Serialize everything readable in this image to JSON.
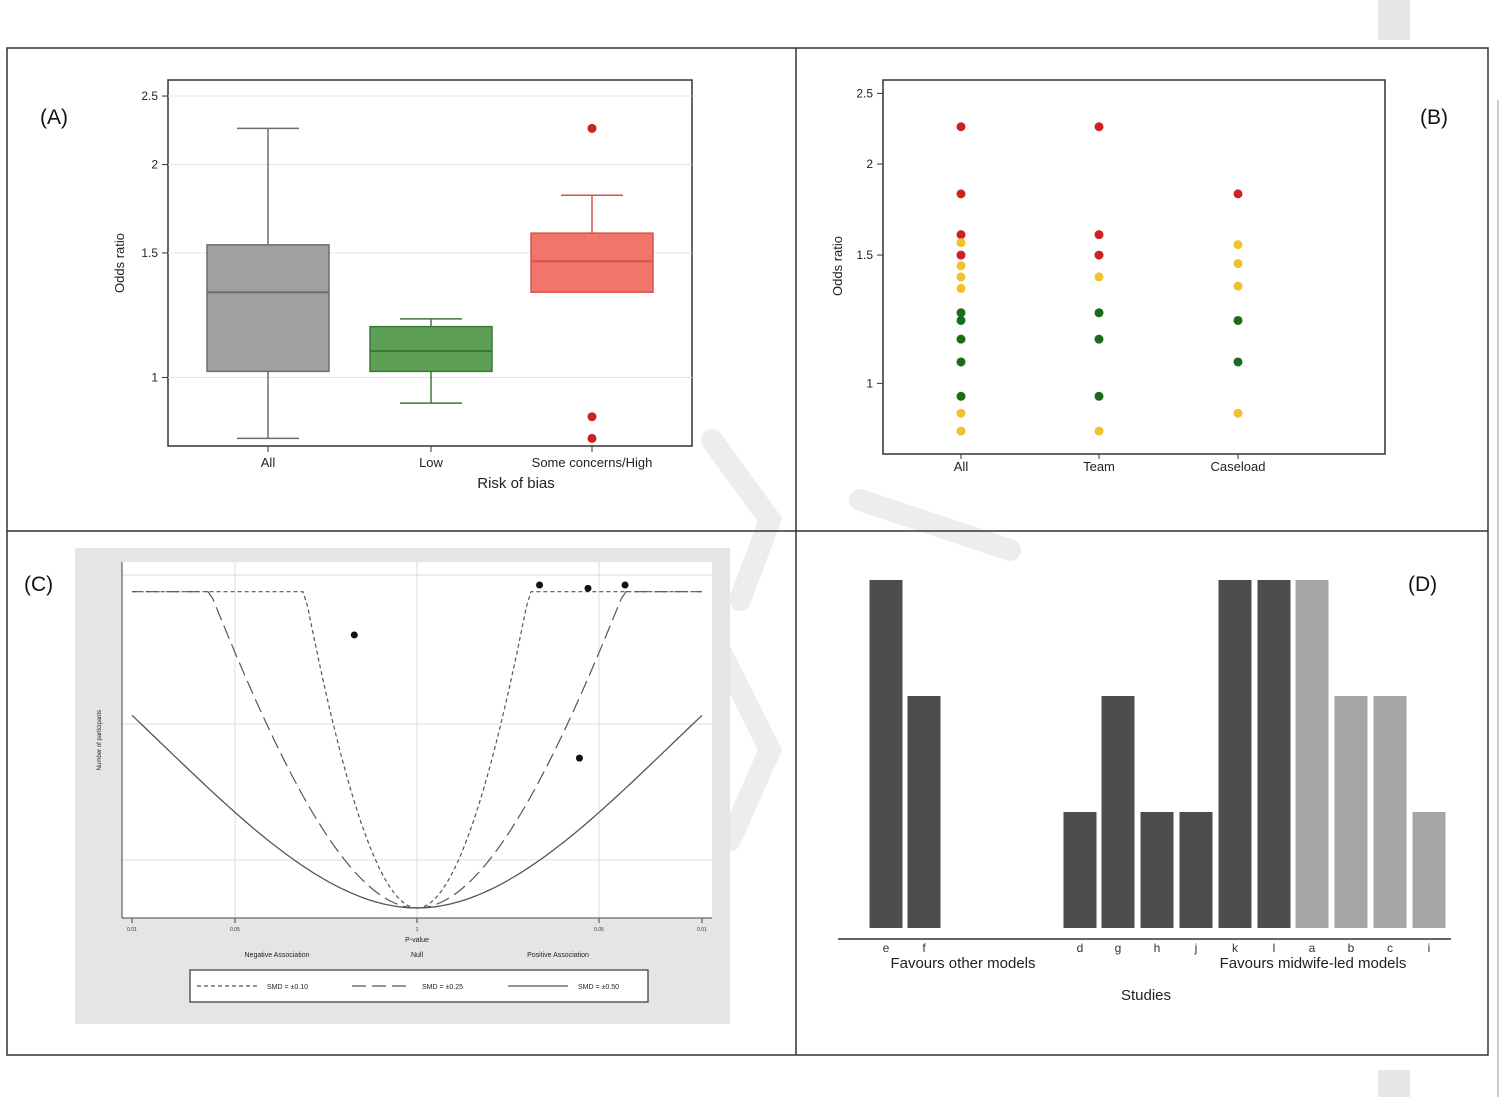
{
  "panels": {
    "a": "(A)",
    "b": "(B)",
    "c": "(C)",
    "d": "(D)"
  },
  "colors": {
    "grey_box": "#9e9e9e",
    "green_box": "#4e9a4e",
    "red_box": "#f0756d",
    "dot_red": "#cc2222",
    "dot_yellow": "#f2c12e",
    "dot_green": "#1a6b1a",
    "bar_dark": "#4d4d4d",
    "bar_light": "#a6a6a6"
  },
  "chart_data": [
    {
      "type": "box",
      "title": "",
      "xlabel": "Risk of bias",
      "ylabel": "Odds ratio",
      "ylim": [
        0.8,
        2.6
      ],
      "log_scale": true,
      "yticks": [
        "1",
        "1.5",
        "2",
        "2.5"
      ],
      "categories": [
        "All",
        "Low",
        "Some concerns/High"
      ],
      "boxes": [
        {
          "name": "All",
          "color": "grey",
          "whisker_low": 0.82,
          "q1": 1.02,
          "median": 1.32,
          "q3": 1.54,
          "whisker_high": 2.25,
          "outliers": []
        },
        {
          "name": "Low",
          "color": "green",
          "whisker_low": 0.92,
          "q1": 1.02,
          "median": 1.09,
          "q3": 1.18,
          "whisker_high": 1.21,
          "outliers": []
        },
        {
          "name": "Some concerns/High",
          "color": "red",
          "whisker_low": null,
          "q1": 1.32,
          "median": 1.46,
          "q3": 1.6,
          "whisker_high": 1.81,
          "outliers": [
            2.25,
            0.88,
            0.82
          ]
        }
      ]
    },
    {
      "type": "scatter",
      "title": "",
      "xlabel": "",
      "ylabel": "Odds ratio",
      "ylim": [
        0.8,
        2.6
      ],
      "log_scale": true,
      "yticks": [
        "1",
        "1.5",
        "2",
        "2.5"
      ],
      "categories": [
        "All",
        "Team",
        "Caseload"
      ],
      "points": [
        {
          "x": "All",
          "y": 2.25,
          "color": "red"
        },
        {
          "x": "All",
          "y": 1.82,
          "color": "red"
        },
        {
          "x": "All",
          "y": 1.6,
          "color": "red"
        },
        {
          "x": "All",
          "y": 1.5,
          "color": "red"
        },
        {
          "x": "All",
          "y": 1.56,
          "color": "yellow"
        },
        {
          "x": "All",
          "y": 1.45,
          "color": "yellow"
        },
        {
          "x": "All",
          "y": 1.4,
          "color": "yellow"
        },
        {
          "x": "All",
          "y": 1.35,
          "color": "yellow"
        },
        {
          "x": "All",
          "y": 1.25,
          "color": "green"
        },
        {
          "x": "All",
          "y": 1.22,
          "color": "green"
        },
        {
          "x": "All",
          "y": 1.15,
          "color": "green"
        },
        {
          "x": "All",
          "y": 1.07,
          "color": "green"
        },
        {
          "x": "All",
          "y": 0.96,
          "color": "green"
        },
        {
          "x": "All",
          "y": 0.91,
          "color": "yellow"
        },
        {
          "x": "All",
          "y": 0.86,
          "color": "yellow"
        },
        {
          "x": "Team",
          "y": 2.25,
          "color": "red"
        },
        {
          "x": "Team",
          "y": 1.6,
          "color": "red"
        },
        {
          "x": "Team",
          "y": 1.5,
          "color": "red"
        },
        {
          "x": "Team",
          "y": 1.4,
          "color": "yellow"
        },
        {
          "x": "Team",
          "y": 1.25,
          "color": "green"
        },
        {
          "x": "Team",
          "y": 1.15,
          "color": "green"
        },
        {
          "x": "Team",
          "y": 0.96,
          "color": "green"
        },
        {
          "x": "Team",
          "y": 0.86,
          "color": "yellow"
        },
        {
          "x": "Caseload",
          "y": 1.82,
          "color": "red"
        },
        {
          "x": "Caseload",
          "y": 1.55,
          "color": "yellow"
        },
        {
          "x": "Caseload",
          "y": 1.46,
          "color": "yellow"
        },
        {
          "x": "Caseload",
          "y": 1.36,
          "color": "yellow"
        },
        {
          "x": "Caseload",
          "y": 1.22,
          "color": "green"
        },
        {
          "x": "Caseload",
          "y": 1.07,
          "color": "green"
        },
        {
          "x": "Caseload",
          "y": 0.91,
          "color": "yellow"
        }
      ]
    },
    {
      "type": "scatter",
      "title": "",
      "xlabel": "P-value",
      "ylabel": "Number of participants",
      "xlim": [
        -1,
        1
      ],
      "ylim": [
        0,
        1
      ],
      "x_annotations": [
        "Negative Association",
        "Null",
        "Positive Association"
      ],
      "x_ticks": [
        "0.01",
        "0.05",
        "1",
        "0.05",
        "0.01"
      ],
      "points": [
        {
          "x": -0.22,
          "y": 0.82
        },
        {
          "x": 0.43,
          "y": 0.97
        },
        {
          "x": 0.6,
          "y": 0.96
        },
        {
          "x": 0.73,
          "y": 0.97
        },
        {
          "x": 0.57,
          "y": 0.45
        }
      ],
      "legend": {
        "position": "bottom",
        "entries": [
          "SMD = ±0.10",
          "SMD = ±0.25",
          "SMD = ±0.50"
        ]
      }
    },
    {
      "type": "bar",
      "title": "",
      "xlabel": "Studies",
      "ylabel": "",
      "categories": [
        "e",
        "f",
        "d",
        "g",
        "h",
        "j",
        "k",
        "l",
        "a",
        "b",
        "c",
        "i"
      ],
      "values": [
        3,
        2,
        1,
        2,
        1,
        1,
        3,
        3,
        3,
        2,
        2,
        1
      ],
      "bar_shade": [
        "dark",
        "dark",
        "dark",
        "dark",
        "dark",
        "dark",
        "dark",
        "dark",
        "light",
        "light",
        "light",
        "light"
      ],
      "group_labels": [
        "Favours other models",
        "Favours midwife-led models"
      ]
    }
  ]
}
